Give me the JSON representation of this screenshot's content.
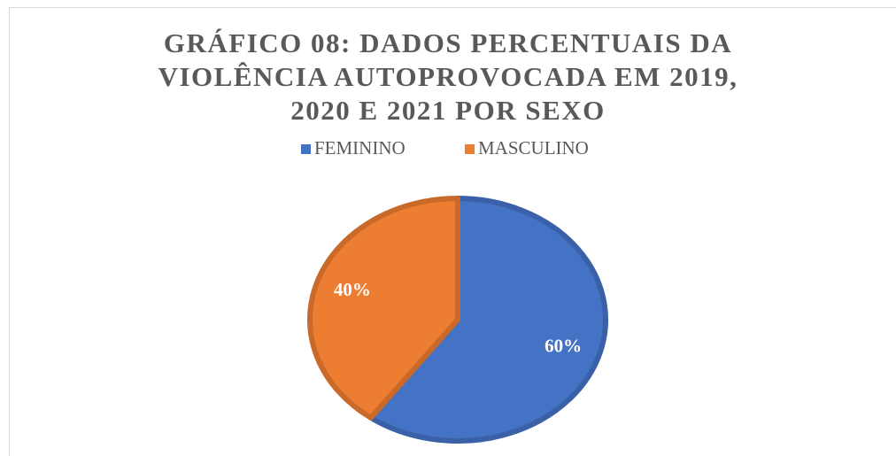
{
  "chart_data": {
    "type": "pie",
    "title": "GRÁFICO 08: DADOS PERCENTUAIS DA VIOLÊNCIA AUTOPROVOCADA EM 2019, 2020 E 2021 POR SEXO",
    "categories": [
      "FEMININO",
      "MASCULINO"
    ],
    "values": [
      60,
      40
    ],
    "value_labels": [
      "60%",
      "40%"
    ],
    "colors": [
      "#4472c4",
      "#ed7d31"
    ],
    "legend": "top"
  }
}
